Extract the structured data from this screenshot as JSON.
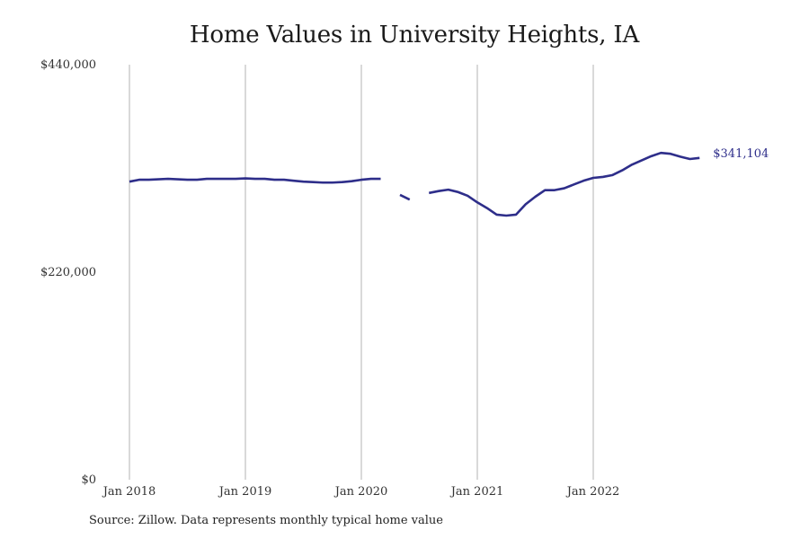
{
  "chart_data": {
    "type": "line",
    "title": "Home Values in University Heights, IA",
    "xlabel": "",
    "ylabel": "",
    "x_ticks": [
      "Jan 2018",
      "Jan 2019",
      "Jan 2020",
      "Jan 2021",
      "Jan 2022"
    ],
    "y_ticks": [
      "$0",
      "$220,000",
      "$440,000"
    ],
    "ylim": [
      0,
      440000
    ],
    "xlim": [
      "2018-01",
      "2022-12"
    ],
    "grid": "vertical lines at year ticks",
    "legend": "none",
    "series": [
      {
        "color": "#2e2e8a",
        "points": [
          {
            "x": "2018-01",
            "y": 316000
          },
          {
            "x": "2018-02",
            "y": 318000
          },
          {
            "x": "2018-03",
            "y": 318000
          },
          {
            "x": "2018-04",
            "y": 318500
          },
          {
            "x": "2018-05",
            "y": 319000
          },
          {
            "x": "2018-06",
            "y": 318500
          },
          {
            "x": "2018-07",
            "y": 318000
          },
          {
            "x": "2018-08",
            "y": 318000
          },
          {
            "x": "2018-09",
            "y": 319000
          },
          {
            "x": "2018-10",
            "y": 319000
          },
          {
            "x": "2018-11",
            "y": 319000
          },
          {
            "x": "2018-12",
            "y": 319000
          },
          {
            "x": "2019-01",
            "y": 319500
          },
          {
            "x": "2019-02",
            "y": 319000
          },
          {
            "x": "2019-03",
            "y": 319000
          },
          {
            "x": "2019-04",
            "y": 318000
          },
          {
            "x": "2019-05",
            "y": 318000
          },
          {
            "x": "2019-06",
            "y": 317000
          },
          {
            "x": "2019-07",
            "y": 316000
          },
          {
            "x": "2019-08",
            "y": 315500
          },
          {
            "x": "2019-09",
            "y": 315000
          },
          {
            "x": "2019-10",
            "y": 315000
          },
          {
            "x": "2019-11",
            "y": 315500
          },
          {
            "x": "2019-12",
            "y": 316500
          },
          {
            "x": "2020-01",
            "y": 318000
          },
          {
            "x": "2020-02",
            "y": 319000
          },
          {
            "x": "2020-03",
            "y": 319000
          },
          {
            "x": "2020-04",
            "y": null
          },
          {
            "x": "2020-05",
            "y": 302000
          },
          {
            "x": "2020-06",
            "y": 297000
          },
          {
            "x": "2020-07",
            "y": null
          },
          {
            "x": "2020-08",
            "y": 304000
          },
          {
            "x": "2020-09",
            "y": 306000
          },
          {
            "x": "2020-10",
            "y": 307500
          },
          {
            "x": "2020-11",
            "y": 305000
          },
          {
            "x": "2020-12",
            "y": 301000
          },
          {
            "x": "2021-01",
            "y": 294000
          },
          {
            "x": "2021-02",
            "y": 288000
          },
          {
            "x": "2021-03",
            "y": 281000
          },
          {
            "x": "2021-04",
            "y": 280000
          },
          {
            "x": "2021-05",
            "y": 281000
          },
          {
            "x": "2021-06",
            "y": 292000
          },
          {
            "x": "2021-07",
            "y": 300000
          },
          {
            "x": "2021-08",
            "y": 307000
          },
          {
            "x": "2021-09",
            "y": 307000
          },
          {
            "x": "2021-10",
            "y": 309000
          },
          {
            "x": "2021-11",
            "y": 313000
          },
          {
            "x": "2021-12",
            "y": 317000
          },
          {
            "x": "2022-01",
            "y": 320000
          },
          {
            "x": "2022-02",
            "y": 321000
          },
          {
            "x": "2022-03",
            "y": 323000
          },
          {
            "x": "2022-04",
            "y": 328000
          },
          {
            "x": "2022-05",
            "y": 334000
          },
          {
            "x": "2022-06",
            "y": 338500
          },
          {
            "x": "2022-07",
            "y": 343000
          },
          {
            "x": "2022-08",
            "y": 346500
          },
          {
            "x": "2022-09",
            "y": 345500
          },
          {
            "x": "2022-10",
            "y": 342500
          },
          {
            "x": "2022-11",
            "y": 340000
          },
          {
            "x": "2022-12",
            "y": 341104
          }
        ]
      }
    ],
    "end_label": "$341,104",
    "source": "Source: Zillow. Data represents monthly typical home value"
  }
}
